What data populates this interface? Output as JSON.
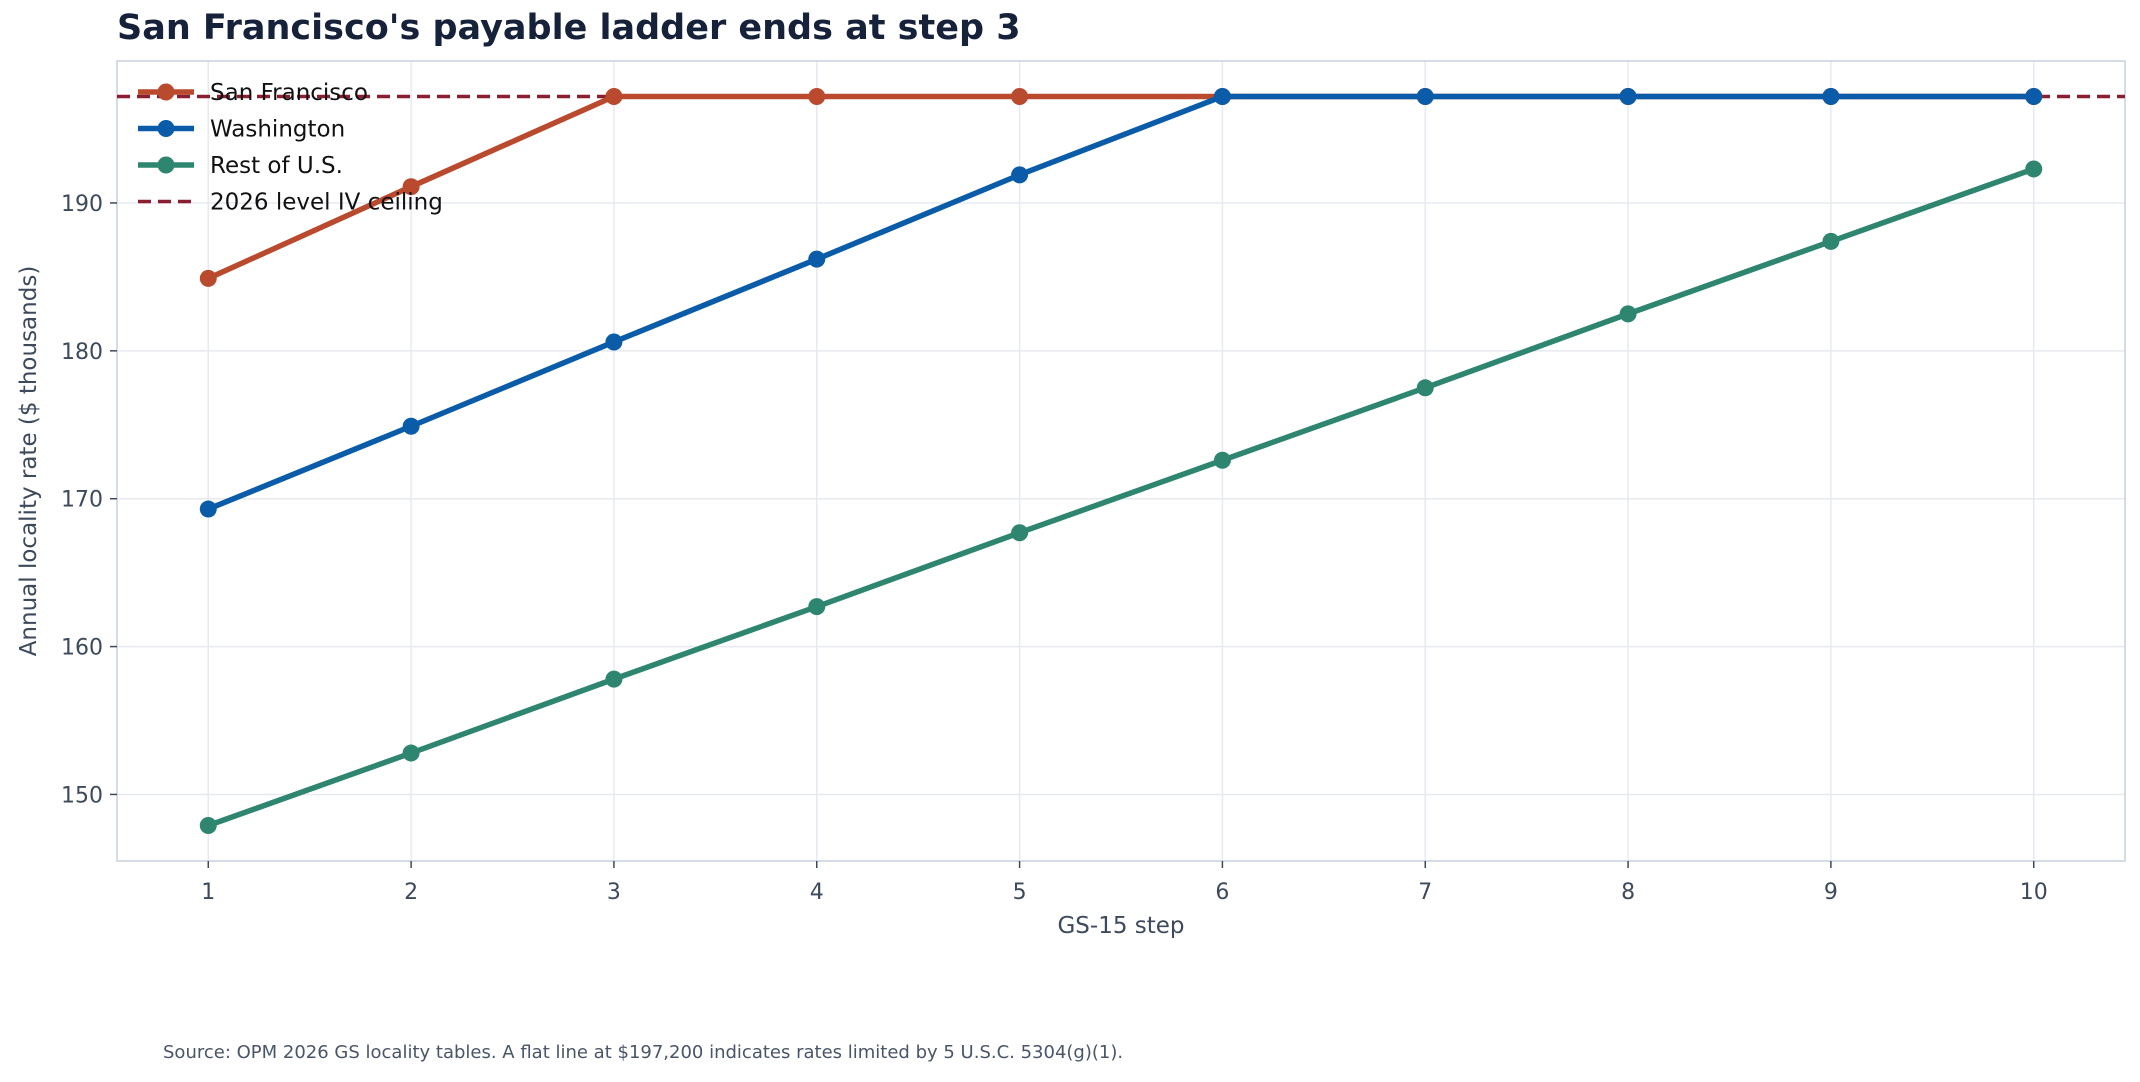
{
  "chart_data": {
    "type": "line",
    "title": "San Francisco's payable ladder ends at step 3",
    "xlabel": "GS-15 step",
    "ylabel": "Annual locality rate ($ thousands)",
    "x": [
      1,
      2,
      3,
      4,
      5,
      6,
      7,
      8,
      9,
      10
    ],
    "xlim": [
      0.55,
      10.45
    ],
    "ylim": [
      145.5,
      199.6
    ],
    "yticks": [
      150,
      160,
      170,
      180,
      190
    ],
    "grid": true,
    "legend_position": "top-left",
    "series": [
      {
        "name": "San Francisco",
        "color": "#b94a2e",
        "values": [
          184.9,
          191.1,
          197.2,
          197.2,
          197.2,
          197.2,
          197.2,
          197.2,
          197.2,
          197.2
        ]
      },
      {
        "name": "Washington",
        "color": "#0b5ca8",
        "values": [
          169.3,
          174.9,
          180.6,
          186.2,
          191.9,
          197.2,
          197.2,
          197.2,
          197.2,
          197.2
        ]
      },
      {
        "name": "Rest of U.S.",
        "color": "#2e8570",
        "values": [
          147.9,
          152.8,
          157.8,
          162.7,
          167.7,
          172.6,
          177.5,
          182.5,
          187.4,
          192.3
        ]
      }
    ],
    "reference_lines": [
      {
        "name": "2026 level IV ceiling",
        "value": 197.2,
        "color": "#8b1e30",
        "style": "dashed"
      }
    ]
  },
  "source_note": "Source: OPM 2026 GS locality tables. A flat line at $197,200 indicates rates limited by 5 U.S.C. 5304(g)(1)."
}
